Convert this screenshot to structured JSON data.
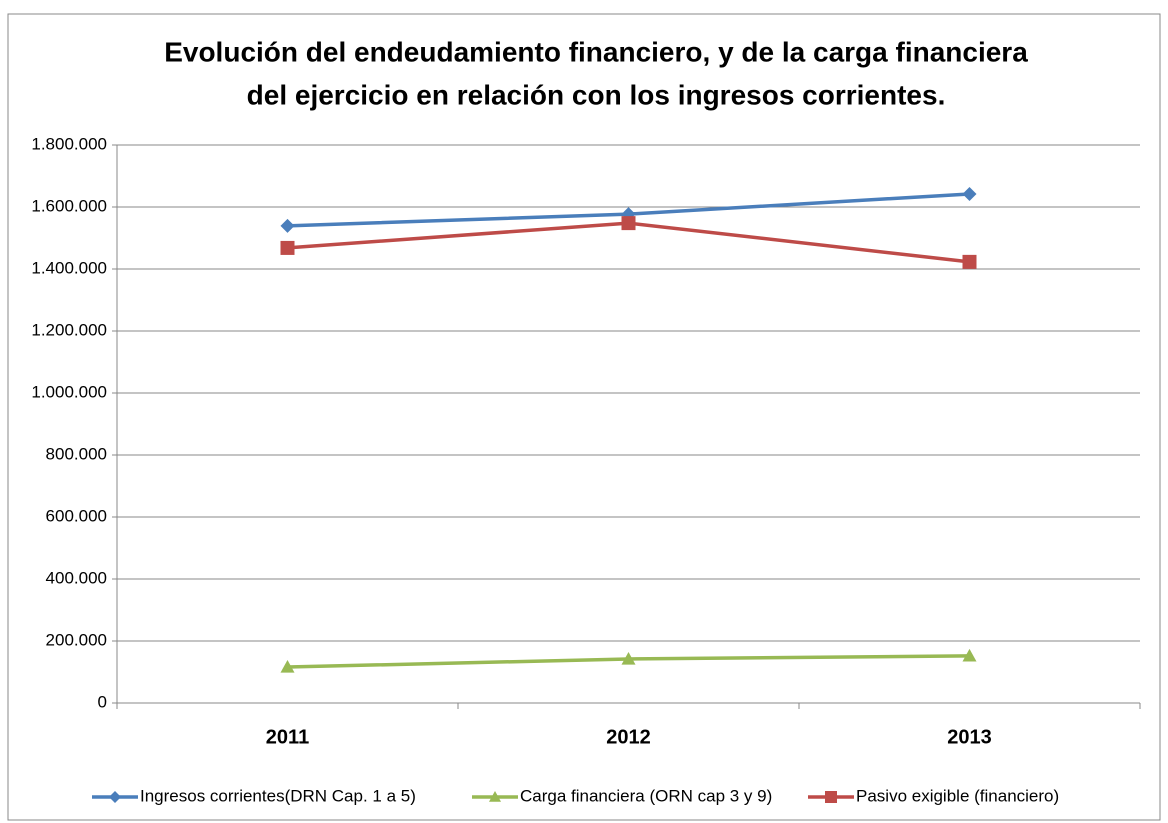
{
  "chart_data": {
    "type": "line",
    "title": [
      "Evolución del endeudamiento financiero, y de la carga financiera",
      "del ejercicio en relación con los ingresos corrientes."
    ],
    "categories": [
      "2011",
      "2012",
      "2013"
    ],
    "series": [
      {
        "name": "Ingresos corrientes(DRN Cap. 1 a 5)",
        "color": "#4a7ebb",
        "marker": "diamond",
        "values": [
          1539000,
          1577000,
          1642000
        ]
      },
      {
        "name": "Carga financiera (ORN cap 3 y 9)",
        "color": "#98b954",
        "marker": "triangle",
        "values": [
          116000,
          142000,
          152000
        ]
      },
      {
        "name": "Pasivo exigible (financiero)",
        "color": "#be4b48",
        "marker": "square",
        "values": [
          1468000,
          1548000,
          1423000
        ]
      }
    ],
    "ylim": [
      0,
      1800000
    ],
    "yticks": [
      0,
      {
        "value": 200000,
        "label": "200.000"
      },
      {
        "value": 400000,
        "label": "400.000"
      },
      {
        "value": 600000,
        "label": "600.000"
      },
      {
        "value": 800000,
        "label": "800.000"
      },
      {
        "value": 1000000,
        "label": "1.000.000"
      },
      {
        "value": 1200000,
        "label": "1.200.000"
      },
      {
        "value": 1400000,
        "label": "1.400.000"
      },
      {
        "value": 1600000,
        "label": "1.600.000"
      },
      {
        "value": 1800000,
        "label": "1.800.000"
      }
    ],
    "grid": true,
    "legend": "bottom"
  }
}
